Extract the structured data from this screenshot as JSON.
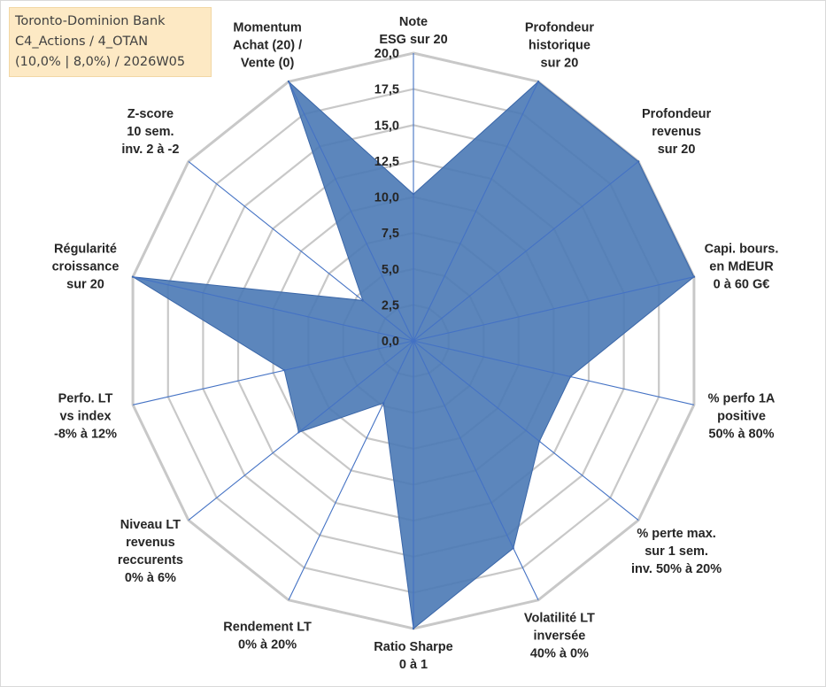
{
  "info": {
    "line1": "Toronto-Dominion Bank",
    "line2": "C4_Actions / 4_OTAN",
    "line3": "(10,0% | 8,0%) / 2026W05"
  },
  "colors": {
    "fill": "#4a79b5",
    "stroke": "#3a66a8",
    "grid": "#c8c8c8",
    "spoke": "#4472c4"
  },
  "chart_data": {
    "type": "radar",
    "title": "",
    "rmin": 0,
    "rmax": 20,
    "ticks": [
      "0,0",
      "2,5",
      "5,0",
      "7,5",
      "10,0",
      "12,5",
      "15,0",
      "17,5",
      "20,0"
    ],
    "categories": [
      [
        "Note",
        "ESG sur 20"
      ],
      [
        "Profondeur",
        "historique",
        "sur 20"
      ],
      [
        "Profondeur",
        "revenus",
        "sur 20"
      ],
      [
        "Capi. bours.",
        "en MdEUR",
        "0 à 60 G€"
      ],
      [
        "% perfo 1A",
        "positive",
        "50% à 80%"
      ],
      [
        "% perte max.",
        "sur 1 sem.",
        "inv. 50% à 20%"
      ],
      [
        "Volatilité LT",
        "inversée",
        "40% à 0%"
      ],
      [
        "Ratio Sharpe",
        "0 à 1"
      ],
      [
        "Rendement LT",
        "0% à 20%"
      ],
      [
        "Niveau LT",
        "revenus",
        "reccurents",
        "0% à 6%"
      ],
      [
        "Perfo. LT",
        "vs index",
        "-8% à 12%"
      ],
      [
        "Régularité",
        "croissance",
        "sur 20"
      ],
      [
        "Z-score",
        "10 sem.",
        "inv. 2 à -2"
      ],
      [
        "Momentum",
        "Achat (20) /",
        "Vente (0)"
      ]
    ],
    "series": [
      {
        "name": "Toronto-Dominion Bank",
        "values": [
          10.2,
          20,
          20,
          20,
          11.2,
          11.2,
          16,
          20,
          4.8,
          10.2,
          9.2,
          20,
          4.5,
          20
        ]
      }
    ]
  }
}
